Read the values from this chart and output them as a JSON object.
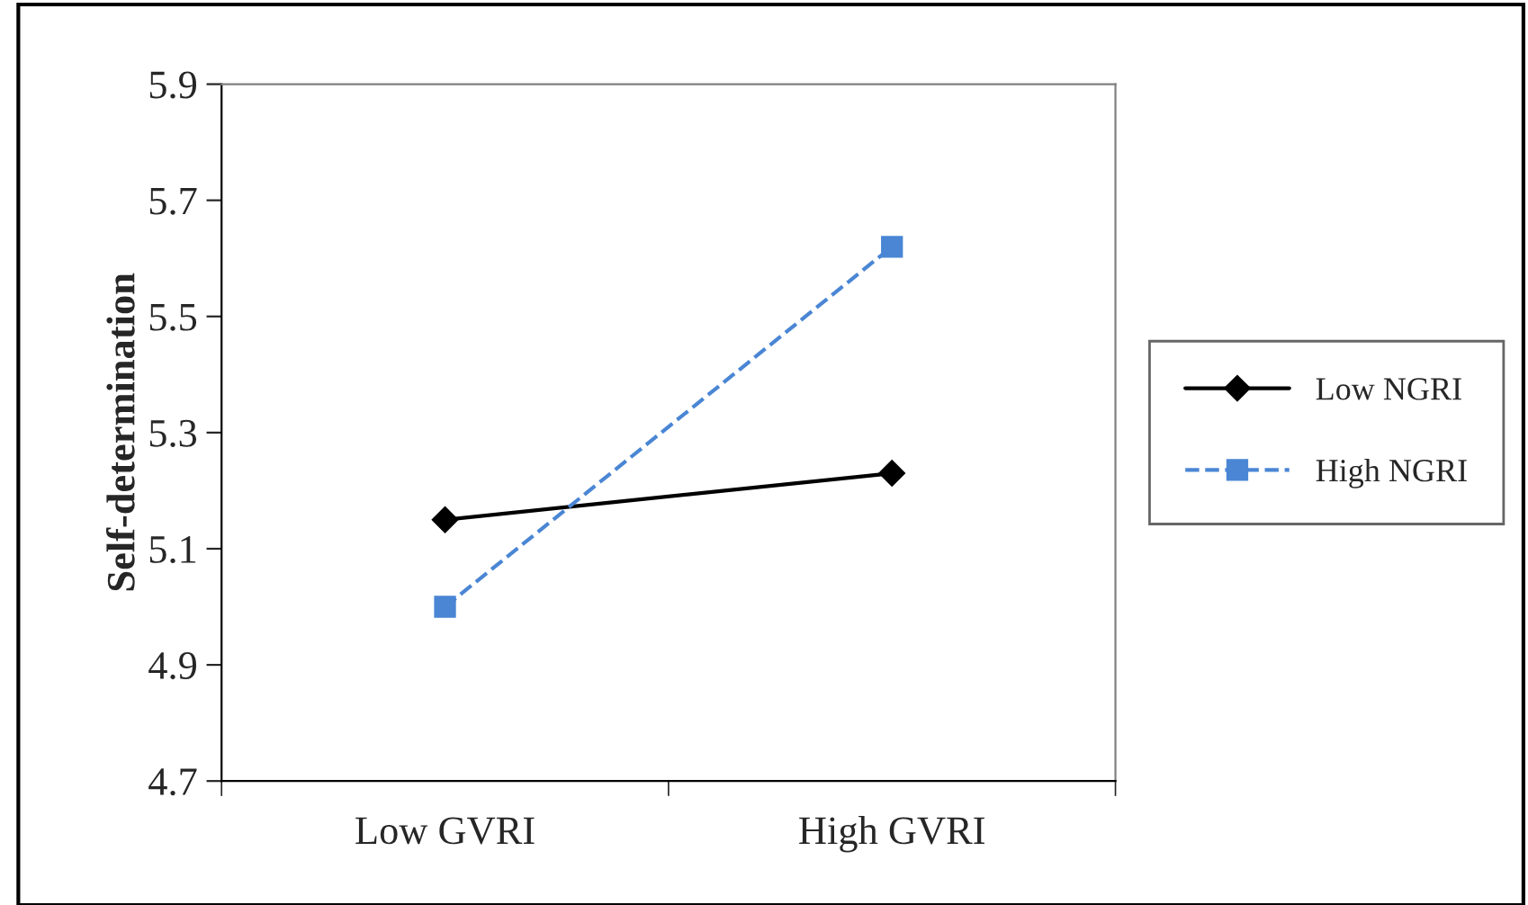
{
  "chart_data": {
    "type": "line",
    "ylabel": "Self-determination",
    "categories": [
      "Low GVRI",
      "High GVRI"
    ],
    "series": [
      {
        "name": "Low NGRI",
        "color": "#000000",
        "values": [
          5.15,
          5.23
        ],
        "marker": "diamond",
        "line_style": "solid"
      },
      {
        "name": "High NGRI",
        "color": "#4a86d4",
        "values": [
          5.0,
          5.62
        ],
        "marker": "square",
        "line_style": "dashed"
      }
    ],
    "ylim": [
      4.7,
      5.9
    ],
    "yticks": [
      4.7,
      4.9,
      5.1,
      5.3,
      5.5,
      5.7,
      5.9
    ],
    "grid": false,
    "legend": "right"
  }
}
